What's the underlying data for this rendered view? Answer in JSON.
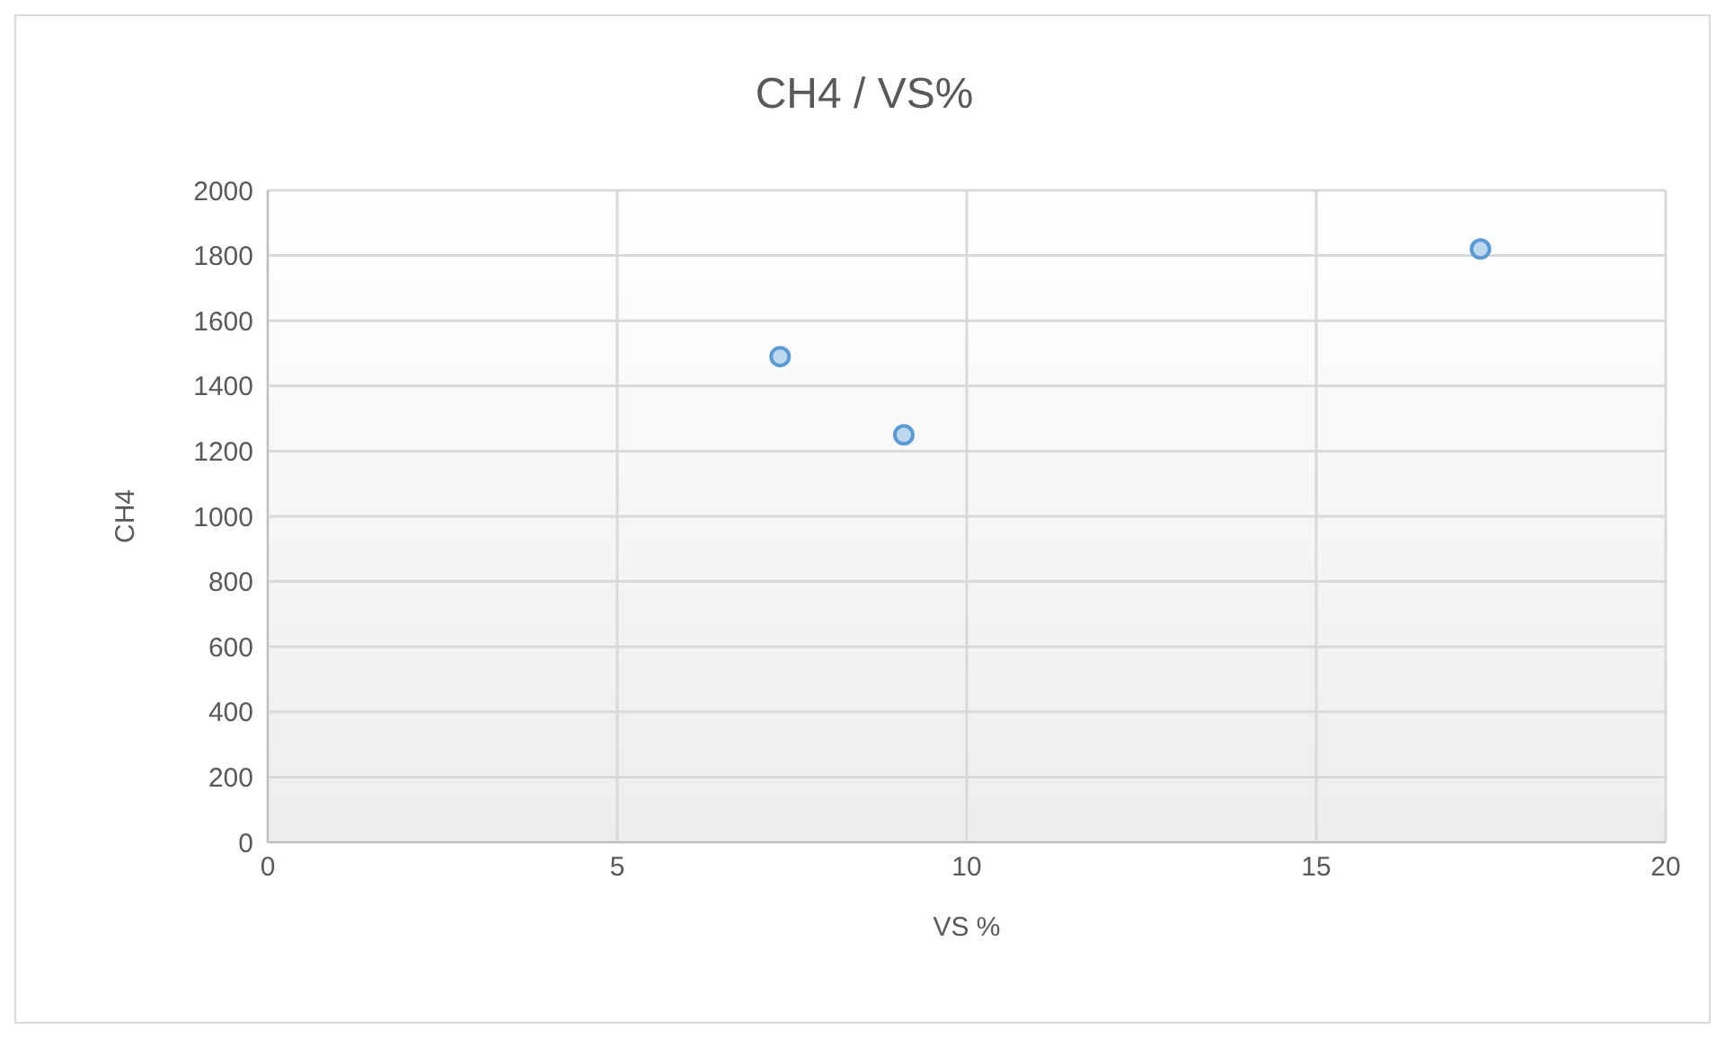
{
  "chart_data": {
    "type": "scatter",
    "title": "CH4  / VS%",
    "xlabel": "VS %",
    "ylabel": "CH4",
    "x": [
      7.33,
      9.1,
      17.35
    ],
    "series": [
      {
        "color": "#5b9bd5",
        "values": [
          1490,
          1250,
          1820
        ]
      }
    ],
    "xlim": [
      0,
      20
    ],
    "xticks": [
      0,
      5,
      10,
      15,
      20
    ],
    "ylim": [
      0,
      2000
    ],
    "yticks": [
      0,
      200,
      400,
      600,
      800,
      1000,
      1200,
      1400,
      1600,
      1800,
      2000
    ],
    "grid": true,
    "marker": "circle"
  }
}
